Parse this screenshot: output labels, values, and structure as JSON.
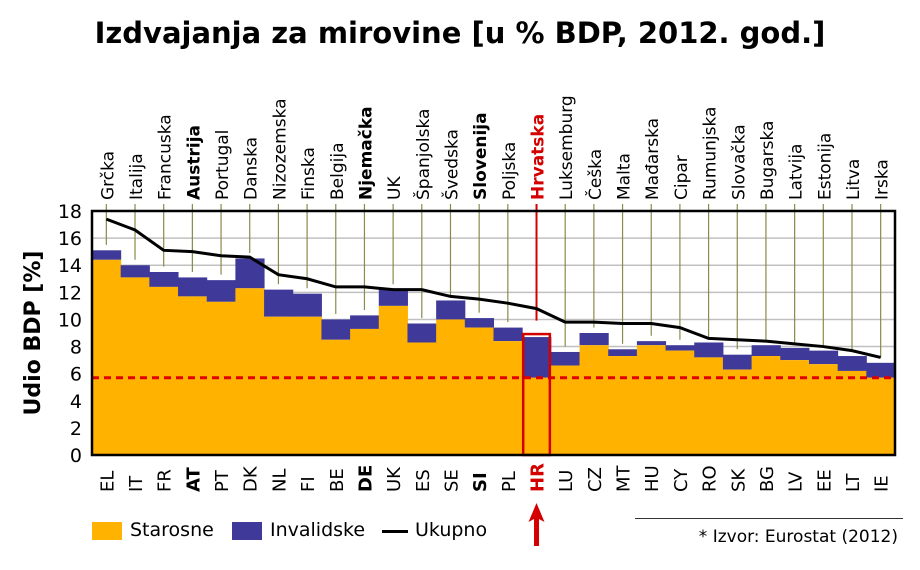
{
  "chart_data": {
    "type": "bar",
    "stacked": true,
    "title": "Izdvajanja za mirovine [u % BDP, 2012. god.]",
    "ylabel": "Udio BDP [%]",
    "xlabel": "",
    "ylim": [
      0,
      18
    ],
    "yticks": [
      0,
      2,
      4,
      6,
      8,
      10,
      12,
      14,
      16,
      18
    ],
    "grid": true,
    "legend_position": "bottom-left",
    "categories": [
      "EL",
      "IT",
      "FR",
      "AT",
      "PT",
      "DK",
      "NL",
      "FI",
      "BE",
      "DE",
      "UK",
      "ES",
      "SE",
      "SI",
      "PL",
      "HR",
      "LU",
      "CZ",
      "MT",
      "HU",
      "CY",
      "RO",
      "SK",
      "BG",
      "LV",
      "EE",
      "LT",
      "IE"
    ],
    "country_names": [
      "Grčka",
      "Italija",
      "Francuska",
      "Austrija",
      "Portugal",
      "Danska",
      "Nizozemska",
      "Finska",
      "Belgija",
      "Njemačka",
      "UK",
      "Španjolska",
      "Švedska",
      "Slovenija",
      "Poljska",
      "Hrvatska",
      "Luksemburg",
      "Češka",
      "Malta",
      "Mađarska",
      "Cipar",
      "Rumunjska",
      "Slovačka",
      "Bugarska",
      "Latvija",
      "Estonija",
      "Litva",
      "Irska"
    ],
    "bold_categories": [
      "AT",
      "DE",
      "SI"
    ],
    "highlight_category": "HR",
    "series": [
      {
        "name": "Starosne",
        "color": "#FFB300",
        "values": [
          14.4,
          13.1,
          12.4,
          11.7,
          11.3,
          12.3,
          10.2,
          10.2,
          8.5,
          9.3,
          11.0,
          8.3,
          10.0,
          9.4,
          8.4,
          5.7,
          6.6,
          8.1,
          7.3,
          8.1,
          7.7,
          7.2,
          6.3,
          7.3,
          7.0,
          6.7,
          6.2,
          5.7
        ]
      },
      {
        "name": "Invalidske",
        "color": "#3F3A99",
        "values": [
          0.7,
          0.9,
          1.1,
          1.4,
          1.6,
          2.2,
          2.0,
          1.7,
          1.5,
          1.0,
          1.2,
          1.4,
          1.4,
          0.7,
          1.0,
          3.0,
          1.0,
          0.9,
          0.5,
          0.3,
          0.4,
          1.1,
          1.1,
          0.8,
          0.9,
          1.0,
          1.1,
          1.1
        ]
      },
      {
        "name": "Ukupno",
        "type": "line",
        "color": "#000000",
        "values": [
          17.4,
          16.6,
          15.1,
          15.0,
          14.7,
          14.6,
          13.3,
          13.0,
          12.4,
          12.4,
          12.2,
          12.2,
          11.7,
          11.5,
          11.2,
          10.8,
          9.8,
          9.8,
          9.7,
          9.7,
          9.4,
          8.6,
          8.5,
          8.4,
          8.2,
          8.0,
          7.7,
          7.2
        ]
      }
    ],
    "reference_line": {
      "value": 5.7,
      "color": "#E00000",
      "style": "dashed"
    },
    "highlight_color": "#D40000"
  },
  "legend": {
    "starosne": "Starosne",
    "invalidske": "Invalidske",
    "ukupno": "Ukupno"
  },
  "source": "* Izvor: Eurostat (2012)"
}
